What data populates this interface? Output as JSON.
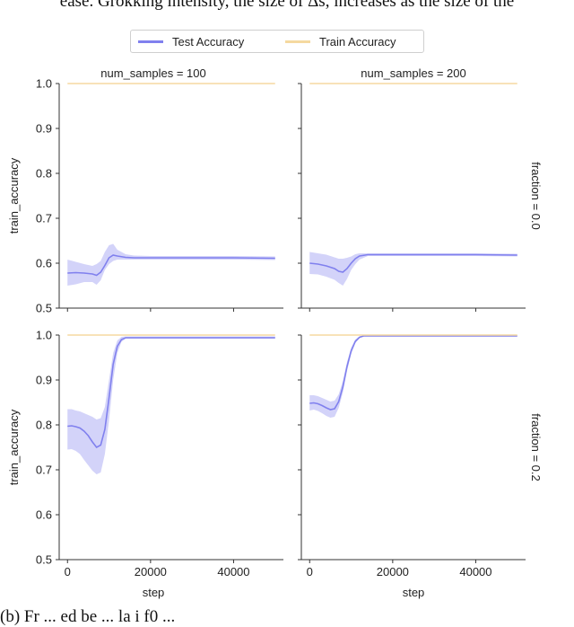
{
  "page": {
    "top_text": "ease. Grokking intensity, the size of Δs, increases as the size of the",
    "caption": "(b) Fr             ... ed        be     ... la  i     f0          ...   "
  },
  "legend": {
    "placement": "top-center",
    "items": [
      {
        "label": "Test Accuracy",
        "color": "#8080ee"
      },
      {
        "label": "Train Accuracy",
        "color": "#f5d9a0"
      }
    ]
  },
  "chart_data": {
    "type": "line",
    "xlabel": "step",
    "ylabel": "train_accuracy",
    "xlim": [
      -2000,
      52000
    ],
    "ylim": [
      0.5,
      1.0
    ],
    "xticks": [
      0,
      20000,
      40000
    ],
    "yticks": [
      0.5,
      0.6,
      0.7,
      0.8,
      0.9,
      1.0
    ],
    "col_titles": [
      "num_samples = 100",
      "num_samples = 200"
    ],
    "row_titles": [
      "fraction = 0.0",
      "fraction = 0.2"
    ],
    "panels": [
      {
        "col": 0,
        "row": 0,
        "train": {
          "x": [
            0,
            50000
          ],
          "y": [
            1.0,
            1.0
          ]
        },
        "test": {
          "x": [
            0,
            2000,
            4000,
            6000,
            7000,
            8000,
            9000,
            10000,
            11000,
            12000,
            14000,
            16000,
            20000,
            30000,
            40000,
            50000
          ],
          "y": [
            0.578,
            0.579,
            0.578,
            0.576,
            0.573,
            0.58,
            0.595,
            0.612,
            0.618,
            0.616,
            0.613,
            0.612,
            0.612,
            0.612,
            0.612,
            0.611
          ],
          "lower": [
            0.55,
            0.553,
            0.558,
            0.558,
            0.552,
            0.562,
            0.585,
            0.598,
            0.605,
            0.608,
            0.608,
            0.608,
            0.608,
            0.608,
            0.608,
            0.607
          ],
          "upper": [
            0.608,
            0.603,
            0.598,
            0.594,
            0.598,
            0.605,
            0.625,
            0.64,
            0.643,
            0.63,
            0.62,
            0.617,
            0.616,
            0.616,
            0.616,
            0.615
          ]
        }
      },
      {
        "col": 1,
        "row": 0,
        "train": {
          "x": [
            0,
            50000
          ],
          "y": [
            1.0,
            1.0
          ]
        },
        "test": {
          "x": [
            0,
            2000,
            4000,
            6000,
            7000,
            8000,
            9000,
            10000,
            11000,
            12000,
            14000,
            16000,
            20000,
            30000,
            40000,
            50000
          ],
          "y": [
            0.6,
            0.598,
            0.594,
            0.588,
            0.582,
            0.58,
            0.588,
            0.6,
            0.61,
            0.616,
            0.619,
            0.619,
            0.619,
            0.619,
            0.619,
            0.618
          ],
          "lower": [
            0.576,
            0.575,
            0.57,
            0.563,
            0.556,
            0.55,
            0.565,
            0.585,
            0.598,
            0.608,
            0.616,
            0.616,
            0.616,
            0.616,
            0.616,
            0.615
          ],
          "upper": [
            0.625,
            0.622,
            0.619,
            0.613,
            0.61,
            0.61,
            0.612,
            0.615,
            0.62,
            0.622,
            0.622,
            0.622,
            0.622,
            0.622,
            0.622,
            0.621
          ]
        }
      },
      {
        "col": 0,
        "row": 1,
        "train": {
          "x": [
            0,
            50000
          ],
          "y": [
            1.0,
            1.0
          ]
        },
        "test": {
          "x": [
            0,
            1000,
            2000,
            3000,
            4000,
            5000,
            6000,
            7000,
            8000,
            9000,
            10000,
            11000,
            12000,
            13000,
            14000,
            15000,
            17000,
            20000,
            30000,
            40000,
            50000
          ],
          "y": [
            0.797,
            0.798,
            0.796,
            0.793,
            0.786,
            0.776,
            0.762,
            0.75,
            0.755,
            0.79,
            0.86,
            0.935,
            0.975,
            0.99,
            0.994,
            0.994,
            0.994,
            0.994,
            0.994,
            0.994,
            0.994
          ],
          "lower": [
            0.745,
            0.746,
            0.742,
            0.735,
            0.722,
            0.71,
            0.698,
            0.69,
            0.694,
            0.735,
            0.81,
            0.9,
            0.96,
            0.985,
            0.992,
            0.992,
            0.992,
            0.992,
            0.992,
            0.992,
            0.992
          ],
          "upper": [
            0.835,
            0.835,
            0.832,
            0.83,
            0.826,
            0.822,
            0.818,
            0.812,
            0.815,
            0.84,
            0.9,
            0.96,
            0.988,
            0.996,
            0.997,
            0.997,
            0.997,
            0.997,
            0.997,
            0.997,
            0.997
          ]
        }
      },
      {
        "col": 1,
        "row": 1,
        "train": {
          "x": [
            0,
            50000
          ],
          "y": [
            1.0,
            1.0
          ]
        },
        "test": {
          "x": [
            0,
            1000,
            2000,
            3000,
            4000,
            5000,
            6000,
            7000,
            8000,
            9000,
            10000,
            11000,
            12000,
            13000,
            14000,
            16000,
            20000,
            30000,
            40000,
            50000
          ],
          "y": [
            0.848,
            0.849,
            0.847,
            0.843,
            0.838,
            0.834,
            0.836,
            0.852,
            0.885,
            0.93,
            0.965,
            0.986,
            0.995,
            0.998,
            0.998,
            0.998,
            0.998,
            0.998,
            0.998,
            0.998
          ],
          "lower": [
            0.832,
            0.834,
            0.831,
            0.826,
            0.82,
            0.816,
            0.818,
            0.838,
            0.872,
            0.92,
            0.958,
            0.982,
            0.993,
            0.997,
            0.997,
            0.997,
            0.997,
            0.997,
            0.997,
            0.997
          ],
          "upper": [
            0.866,
            0.866,
            0.864,
            0.86,
            0.856,
            0.852,
            0.854,
            0.868,
            0.898,
            0.94,
            0.972,
            0.99,
            0.997,
            0.999,
            0.999,
            0.999,
            0.999,
            0.999,
            0.999,
            0.999
          ]
        }
      }
    ]
  }
}
